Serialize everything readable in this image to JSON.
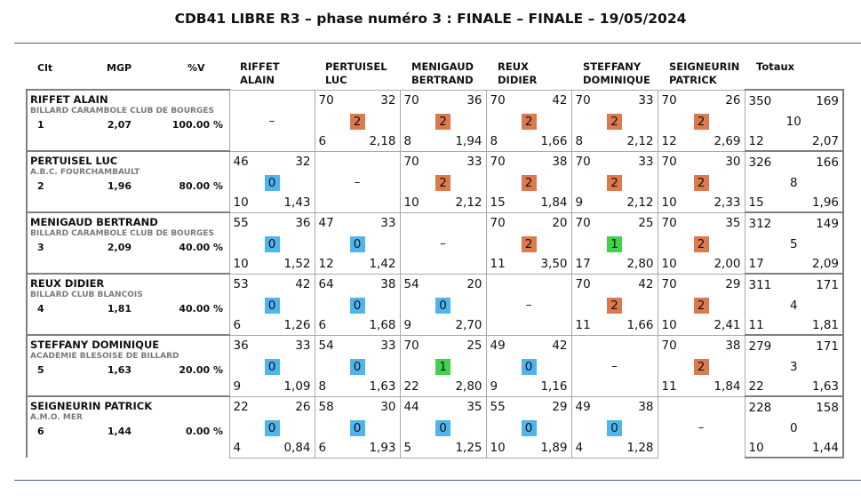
{
  "title": "CDB41 LIBRE R3 – phase numéro 3 : FINALE – FINALE – 19/05/2024",
  "left_headers": {
    "clt": "Clt",
    "mgp": "MGP",
    "pct": "%V"
  },
  "columns": [
    {
      "line1": "RIFFET",
      "line2": "ALAIN"
    },
    {
      "line1": "PERTUISEL",
      "line2": "LUC"
    },
    {
      "line1": "MENIGAUD",
      "line2": "BERTRAND"
    },
    {
      "line1": "REUX",
      "line2": "DIDIER"
    },
    {
      "line1": "STEFFANY",
      "line2": "DOMINIQUE"
    },
    {
      "line1": "SEIGNEURIN",
      "line2": "PATRICK"
    },
    {
      "line1": "Totaux",
      "line2": ""
    }
  ],
  "dash": "–",
  "players": [
    {
      "name": "RIFFET ALAIN",
      "club": "BILLARD CARAMBOLE CLUB DE BOURGES",
      "rank": "1",
      "mgp": "2,07",
      "pct": "100.00 %",
      "cells": [
        null,
        {
          "a": "70",
          "b": "32",
          "pts": "2",
          "c": "6",
          "d": "2,18"
        },
        {
          "a": "70",
          "b": "36",
          "pts": "2",
          "c": "8",
          "d": "1,94"
        },
        {
          "a": "70",
          "b": "42",
          "pts": "2",
          "c": "8",
          "d": "1,66"
        },
        {
          "a": "70",
          "b": "33",
          "pts": "2",
          "c": "8",
          "d": "2,12"
        },
        {
          "a": "70",
          "b": "26",
          "pts": "2",
          "c": "12",
          "d": "2,69"
        }
      ],
      "total": {
        "a": "350",
        "b": "169",
        "pts": "10",
        "c": "12",
        "d": "2,07"
      }
    },
    {
      "name": "PERTUISEL LUC",
      "club": "A.B.C. FOURCHAMBAULT",
      "rank": "2",
      "mgp": "1,96",
      "pct": "80.00 %",
      "cells": [
        {
          "a": "46",
          "b": "32",
          "pts": "0",
          "c": "10",
          "d": "1,43"
        },
        null,
        {
          "a": "70",
          "b": "33",
          "pts": "2",
          "c": "10",
          "d": "2,12"
        },
        {
          "a": "70",
          "b": "38",
          "pts": "2",
          "c": "15",
          "d": "1,84"
        },
        {
          "a": "70",
          "b": "33",
          "pts": "2",
          "c": "9",
          "d": "2,12"
        },
        {
          "a": "70",
          "b": "30",
          "pts": "2",
          "c": "10",
          "d": "2,33"
        }
      ],
      "total": {
        "a": "326",
        "b": "166",
        "pts": "8",
        "c": "15",
        "d": "1,96"
      }
    },
    {
      "name": "MENIGAUD BERTRAND",
      "club": "BILLARD CARAMBOLE CLUB DE BOURGES",
      "rank": "3",
      "mgp": "2,09",
      "pct": "40.00 %",
      "cells": [
        {
          "a": "55",
          "b": "36",
          "pts": "0",
          "c": "10",
          "d": "1,52"
        },
        {
          "a": "47",
          "b": "33",
          "pts": "0",
          "c": "12",
          "d": "1,42"
        },
        null,
        {
          "a": "70",
          "b": "20",
          "pts": "2",
          "c": "11",
          "d": "3,50"
        },
        {
          "a": "70",
          "b": "25",
          "pts": "1",
          "c": "17",
          "d": "2,80"
        },
        {
          "a": "70",
          "b": "35",
          "pts": "2",
          "c": "10",
          "d": "2,00"
        }
      ],
      "total": {
        "a": "312",
        "b": "149",
        "pts": "5",
        "c": "17",
        "d": "2,09"
      }
    },
    {
      "name": "REUX DIDIER",
      "club": "BILLARD CLUB BLANCOIS",
      "rank": "4",
      "mgp": "1,81",
      "pct": "40.00 %",
      "cells": [
        {
          "a": "53",
          "b": "42",
          "pts": "0",
          "c": "6",
          "d": "1,26"
        },
        {
          "a": "64",
          "b": "38",
          "pts": "0",
          "c": "6",
          "d": "1,68"
        },
        {
          "a": "54",
          "b": "20",
          "pts": "0",
          "c": "9",
          "d": "2,70"
        },
        null,
        {
          "a": "70",
          "b": "42",
          "pts": "2",
          "c": "11",
          "d": "1,66"
        },
        {
          "a": "70",
          "b": "29",
          "pts": "2",
          "c": "10",
          "d": "2,41"
        }
      ],
      "total": {
        "a": "311",
        "b": "171",
        "pts": "4",
        "c": "11",
        "d": "1,81"
      }
    },
    {
      "name": "STEFFANY DOMINIQUE",
      "club": "ACADEMIE BLESOISE DE BILLARD",
      "rank": "5",
      "mgp": "1,63",
      "pct": "20.00 %",
      "cells": [
        {
          "a": "36",
          "b": "33",
          "pts": "0",
          "c": "9",
          "d": "1,09"
        },
        {
          "a": "54",
          "b": "33",
          "pts": "0",
          "c": "8",
          "d": "1,63"
        },
        {
          "a": "70",
          "b": "25",
          "pts": "1",
          "c": "22",
          "d": "2,80"
        },
        {
          "a": "49",
          "b": "42",
          "pts": "0",
          "c": "9",
          "d": "1,16"
        },
        null,
        {
          "a": "70",
          "b": "38",
          "pts": "2",
          "c": "11",
          "d": "1,84"
        }
      ],
      "total": {
        "a": "279",
        "b": "171",
        "pts": "3",
        "c": "22",
        "d": "1,63"
      }
    },
    {
      "name": "SEIGNEURIN PATRICK",
      "club": "A.M.O. MER",
      "rank": "6",
      "mgp": "1,44",
      "pct": "0.00 %",
      "cells": [
        {
          "a": "22",
          "b": "26",
          "pts": "0",
          "c": "4",
          "d": "0,84"
        },
        {
          "a": "58",
          "b": "30",
          "pts": "0",
          "c": "6",
          "d": "1,93"
        },
        {
          "a": "44",
          "b": "35",
          "pts": "0",
          "c": "5",
          "d": "1,25"
        },
        {
          "a": "55",
          "b": "29",
          "pts": "0",
          "c": "10",
          "d": "1,89"
        },
        {
          "a": "49",
          "b": "38",
          "pts": "0",
          "c": "4",
          "d": "1,28"
        },
        null
      ],
      "total": {
        "a": "228",
        "b": "158",
        "pts": "0",
        "c": "10",
        "d": "1,44"
      }
    }
  ],
  "colors": {
    "win": "#dc7a4d",
    "draw": "#43d14d",
    "loss": "#4fb5ec"
  }
}
